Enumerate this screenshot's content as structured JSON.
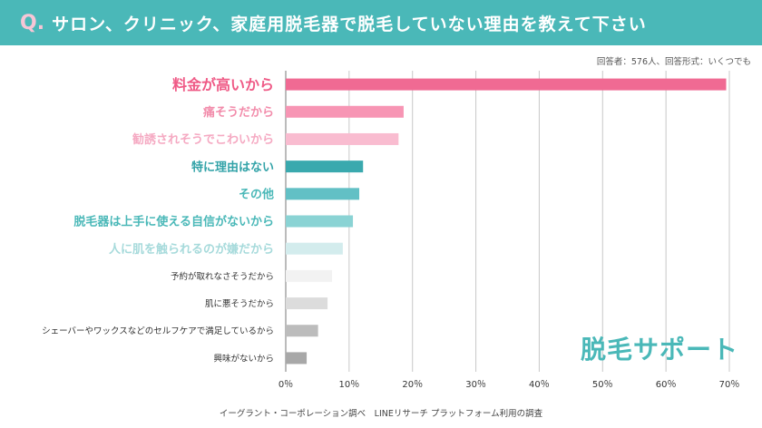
{
  "header": {
    "q_mark": "Q.",
    "question": "サロン、クリニック、家庭用脱毛器で脱毛していない理由を教えて下さい"
  },
  "subnote": "回答者：576人、回答形式：いくつでも",
  "source": "イーグラント・コーポレーション調べ　LINEリサーチ プラットフォーム利用の調査",
  "logo": "脱毛サポート",
  "chart_data": {
    "type": "bar",
    "orientation": "horizontal",
    "categories": [
      "料金が高いから",
      "痛そうだから",
      "勧誘されそうでこわいから",
      "特に理由はない",
      "その他",
      "脱毛器は上手に使える自信がないから",
      "人に肌を触られるのが嫌だから",
      "予約が取れなさそうだから",
      "肌に悪そうだから",
      "シェーバーやワックスなどのセルフケアで満足しているから",
      "興味がないから"
    ],
    "values": [
      69.5,
      18.6,
      17.8,
      12.2,
      11.6,
      10.6,
      9.0,
      7.3,
      6.6,
      5.1,
      3.3
    ],
    "colors": [
      "#f06a93",
      "#f795b4",
      "#f9bcd0",
      "#3aa9ae",
      "#62c0c5",
      "#8ad3d4",
      "#d3eced",
      "#f2f2f2",
      "#dcdcdc",
      "#bcbcbc",
      "#a8a8a8"
    ],
    "label_colors": [
      "#ef5a86",
      "#f28cab",
      "#f5a9c2",
      "#33a3a8",
      "#4ab8b8",
      "#4ab8b8",
      "#a6dadb",
      "#333333",
      "#333333",
      "#333333",
      "#333333"
    ],
    "xticks": [
      "0％",
      "10％",
      "20％",
      "30％",
      "40％",
      "50％",
      "60％",
      "70％"
    ],
    "xlim": [
      0,
      70
    ],
    "grid": true
  }
}
